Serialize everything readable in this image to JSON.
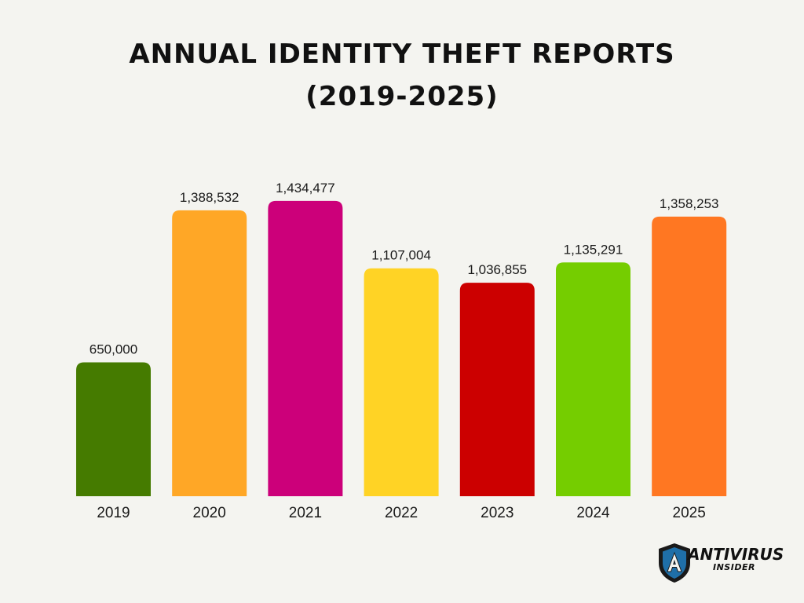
{
  "title_line1": "ANNUAL IDENTITY THEFT REPORTS",
  "title_line2": "(2019-2025)",
  "chart_data": {
    "type": "bar",
    "categories": [
      "2019",
      "2020",
      "2021",
      "2022",
      "2023",
      "2024",
      "2025"
    ],
    "values": [
      650000,
      1388532,
      1434477,
      1107004,
      1036855,
      1135291,
      1358253
    ],
    "value_labels": [
      "650,000",
      "1,388,532",
      "1,434,477",
      "1,107,004",
      "1,036,855",
      "1,135,291",
      "1,358,253"
    ],
    "colors": [
      "#457b00",
      "#ffa726",
      "#cc007a",
      "#ffd325",
      "#cc0000",
      "#75cd00",
      "#ff7722"
    ],
    "title": "ANNUAL IDENTITY THEFT REPORTS (2019-2025)",
    "xlabel": "",
    "ylabel": "",
    "grid": false,
    "legend": "none"
  },
  "logo": {
    "name": "ANTIVIRUS",
    "sub": "INSIDER",
    "shield_color": "#1f6fa8"
  }
}
